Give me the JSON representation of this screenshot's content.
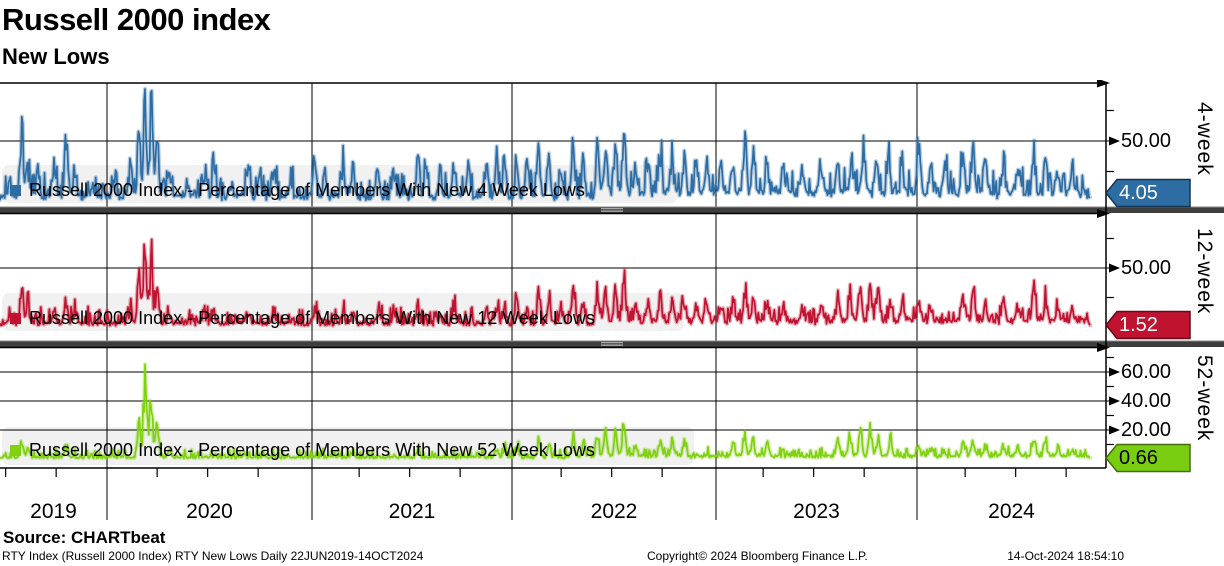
{
  "header": {
    "title": "Russell 2000 index",
    "subtitle": "New Lows"
  },
  "source_line": "Source: CHARTbeat",
  "footer": {
    "left": "RTY Index (Russell 2000 Index) RTY New Lows  Daily 22JUN2019-14OCT2024",
    "center": "Copyright© 2024 Bloomberg Finance L.P.",
    "right": "14-Oct-2024 18:54:10"
  },
  "x_axis": {
    "year_labels": [
      "2019",
      "2020",
      "2021",
      "2022",
      "2023",
      "2024"
    ]
  },
  "chart_data": [
    {
      "type": "line",
      "name": "4-week",
      "legend": "Russell 2000 Index - Percentage of Members With New 4 Week Lows",
      "color": "#2e6da4",
      "badge": "4.05",
      "badge_text_color": "#ffffff",
      "badge_border": "#16344f",
      "last_value": 4.05,
      "ylim": [
        0,
        100
      ],
      "yticks": [
        {
          "value": 50,
          "label": "50.00"
        }
      ],
      "minor_yticks": [
        25,
        75
      ],
      "x_start": 2019.472,
      "x_end": 2024.868,
      "baseline_mean": 4.2,
      "noise": 10,
      "lift_from": 2022.45,
      "lift": 5,
      "seed": 7,
      "spikes": [
        [
          2019.52,
          14
        ],
        [
          2019.58,
          50
        ],
        [
          2019.61,
          30
        ],
        [
          2019.66,
          22
        ],
        [
          2019.74,
          30
        ],
        [
          2019.8,
          55
        ],
        [
          2019.84,
          20
        ],
        [
          2019.93,
          12
        ],
        [
          2020.04,
          16
        ],
        [
          2020.12,
          28
        ],
        [
          2020.16,
          62
        ],
        [
          2020.19,
          95
        ],
        [
          2020.22,
          85
        ],
        [
          2020.25,
          60
        ],
        [
          2020.31,
          20
        ],
        [
          2020.4,
          14
        ],
        [
          2020.48,
          25
        ],
        [
          2020.53,
          30
        ],
        [
          2020.62,
          14
        ],
        [
          2020.7,
          32
        ],
        [
          2020.76,
          24
        ],
        [
          2020.83,
          27
        ],
        [
          2020.91,
          12
        ],
        [
          2021.03,
          34
        ],
        [
          2021.08,
          26
        ],
        [
          2021.17,
          30
        ],
        [
          2021.22,
          34
        ],
        [
          2021.34,
          32
        ],
        [
          2021.42,
          26
        ],
        [
          2021.54,
          44
        ],
        [
          2021.58,
          36
        ],
        [
          2021.65,
          26
        ],
        [
          2021.72,
          36
        ],
        [
          2021.79,
          30
        ],
        [
          2021.88,
          32
        ],
        [
          2021.93,
          42
        ],
        [
          2021.97,
          46
        ],
        [
          2022.03,
          40
        ],
        [
          2022.08,
          32
        ],
        [
          2022.14,
          44
        ],
        [
          2022.19,
          36
        ],
        [
          2022.25,
          30
        ],
        [
          2022.31,
          46
        ],
        [
          2022.36,
          40
        ],
        [
          2022.43,
          52
        ],
        [
          2022.47,
          56
        ],
        [
          2022.52,
          42
        ],
        [
          2022.56,
          46
        ],
        [
          2022.62,
          26
        ],
        [
          2022.68,
          32
        ],
        [
          2022.74,
          34
        ],
        [
          2022.8,
          27
        ],
        [
          2022.86,
          36
        ],
        [
          2022.92,
          32
        ],
        [
          2022.97,
          30
        ],
        [
          2023.04,
          27
        ],
        [
          2023.1,
          30
        ],
        [
          2023.16,
          52
        ],
        [
          2023.2,
          43
        ],
        [
          2023.27,
          32
        ],
        [
          2023.35,
          24
        ],
        [
          2023.44,
          22
        ],
        [
          2023.54,
          27
        ],
        [
          2023.62,
          33
        ],
        [
          2023.69,
          36
        ],
        [
          2023.75,
          39
        ],
        [
          2023.81,
          43
        ],
        [
          2023.87,
          32
        ],
        [
          2023.94,
          27
        ],
        [
          2024.02,
          46
        ],
        [
          2024.08,
          30
        ],
        [
          2024.15,
          24
        ],
        [
          2024.24,
          36
        ],
        [
          2024.29,
          43
        ],
        [
          2024.35,
          32
        ],
        [
          2024.44,
          30
        ],
        [
          2024.51,
          27
        ],
        [
          2024.59,
          41
        ],
        [
          2024.65,
          30
        ],
        [
          2024.71,
          20
        ],
        [
          2024.78,
          14
        ]
      ]
    },
    {
      "type": "line",
      "name": "12-week",
      "legend": "Russell 2000 Index - Percentage of Members With New 12 Week Lows",
      "color": "#bf1330",
      "badge": "1.52",
      "badge_text_color": "#ffffff",
      "badge_border": "#64091a",
      "last_value": 1.52,
      "ylim": [
        0,
        100
      ],
      "yticks": [
        {
          "value": 50,
          "label": "50.00"
        }
      ],
      "minor_yticks": [
        25,
        75
      ],
      "x_start": 2019.472,
      "x_end": 2024.868,
      "baseline_mean": 3.2,
      "noise": 7,
      "lift_from": 2022.45,
      "lift": 2.5,
      "seed": 13,
      "spikes": [
        [
          2019.52,
          8
        ],
        [
          2019.58,
          30
        ],
        [
          2019.61,
          20
        ],
        [
          2019.74,
          12
        ],
        [
          2019.8,
          28
        ],
        [
          2019.84,
          10
        ],
        [
          2020.12,
          15
        ],
        [
          2020.16,
          48
        ],
        [
          2020.19,
          88
        ],
        [
          2020.22,
          72
        ],
        [
          2020.25,
          42
        ],
        [
          2020.31,
          10
        ],
        [
          2020.48,
          10
        ],
        [
          2020.53,
          12
        ],
        [
          2020.7,
          13
        ],
        [
          2020.83,
          10
        ],
        [
          2021.03,
          12
        ],
        [
          2021.17,
          10
        ],
        [
          2021.22,
          13
        ],
        [
          2021.34,
          11
        ],
        [
          2021.42,
          9
        ],
        [
          2021.54,
          16
        ],
        [
          2021.65,
          10
        ],
        [
          2021.72,
          13
        ],
        [
          2021.88,
          12
        ],
        [
          2021.93,
          18
        ],
        [
          2021.97,
          22
        ],
        [
          2022.03,
          20
        ],
        [
          2022.08,
          15
        ],
        [
          2022.14,
          26
        ],
        [
          2022.19,
          21
        ],
        [
          2022.25,
          16
        ],
        [
          2022.31,
          28
        ],
        [
          2022.36,
          23
        ],
        [
          2022.43,
          30
        ],
        [
          2022.47,
          33
        ],
        [
          2022.52,
          26
        ],
        [
          2022.56,
          38
        ],
        [
          2022.62,
          16
        ],
        [
          2022.68,
          19
        ],
        [
          2022.74,
          21
        ],
        [
          2022.8,
          23
        ],
        [
          2022.86,
          26
        ],
        [
          2022.92,
          19
        ],
        [
          2022.97,
          16
        ],
        [
          2023.04,
          16
        ],
        [
          2023.1,
          19
        ],
        [
          2023.16,
          31
        ],
        [
          2023.2,
          26
        ],
        [
          2023.27,
          21
        ],
        [
          2023.35,
          14
        ],
        [
          2023.44,
          13
        ],
        [
          2023.54,
          16
        ],
        [
          2023.62,
          23
        ],
        [
          2023.68,
          31
        ],
        [
          2023.73,
          39
        ],
        [
          2023.78,
          36
        ],
        [
          2023.82,
          31
        ],
        [
          2023.88,
          23
        ],
        [
          2023.94,
          16
        ],
        [
          2024.02,
          19
        ],
        [
          2024.08,
          16
        ],
        [
          2024.24,
          23
        ],
        [
          2024.29,
          31
        ],
        [
          2024.35,
          21
        ],
        [
          2024.44,
          26
        ],
        [
          2024.51,
          19
        ],
        [
          2024.59,
          34
        ],
        [
          2024.65,
          21
        ],
        [
          2024.71,
          13
        ],
        [
          2024.78,
          9
        ]
      ]
    },
    {
      "type": "line",
      "name": "52-week",
      "legend": "Russell 2000 Index - Percentage of Members With New 52 Week Lows",
      "color": "#80d110",
      "badge": "0.66",
      "badge_text_color": "#000000",
      "badge_border": "#456e0a",
      "last_value": 0.66,
      "ylim": [
        0,
        77
      ],
      "yticks": [
        {
          "value": 60,
          "label": "60.00"
        },
        {
          "value": 40,
          "label": "40.00"
        },
        {
          "value": 20,
          "label": "20.00"
        }
      ],
      "minor_yticks": [
        10,
        30,
        50,
        70
      ],
      "x_start": 2019.472,
      "x_end": 2024.868,
      "baseline_mean": 1.1,
      "noise": 3.2,
      "lift_from": 2022.45,
      "lift": 1.2,
      "seed": 29,
      "spikes": [
        [
          2019.58,
          12
        ],
        [
          2019.61,
          7
        ],
        [
          2019.8,
          10
        ],
        [
          2020.16,
          26
        ],
        [
          2020.19,
          74
        ],
        [
          2020.22,
          56
        ],
        [
          2020.25,
          30
        ],
        [
          2020.31,
          6
        ],
        [
          2021.22,
          4
        ],
        [
          2021.54,
          5
        ],
        [
          2021.93,
          6
        ],
        [
          2021.97,
          8
        ],
        [
          2022.03,
          9
        ],
        [
          2022.14,
          13
        ],
        [
          2022.19,
          11
        ],
        [
          2022.31,
          16
        ],
        [
          2022.36,
          13
        ],
        [
          2022.43,
          19
        ],
        [
          2022.47,
          23
        ],
        [
          2022.52,
          17
        ],
        [
          2022.56,
          26
        ],
        [
          2022.62,
          9
        ],
        [
          2022.74,
          11
        ],
        [
          2022.8,
          13
        ],
        [
          2022.86,
          11
        ],
        [
          2023.1,
          9
        ],
        [
          2023.16,
          16
        ],
        [
          2023.2,
          13
        ],
        [
          2023.27,
          11
        ],
        [
          2023.62,
          13
        ],
        [
          2023.68,
          19
        ],
        [
          2023.73,
          23
        ],
        [
          2023.78,
          21
        ],
        [
          2023.82,
          16
        ],
        [
          2023.88,
          11
        ],
        [
          2024.02,
          9
        ],
        [
          2024.08,
          7
        ],
        [
          2024.24,
          11
        ],
        [
          2024.29,
          13
        ],
        [
          2024.35,
          9
        ],
        [
          2024.44,
          11
        ],
        [
          2024.51,
          8
        ],
        [
          2024.59,
          13
        ],
        [
          2024.65,
          9
        ],
        [
          2024.71,
          6
        ],
        [
          2024.78,
          4
        ]
      ]
    }
  ]
}
